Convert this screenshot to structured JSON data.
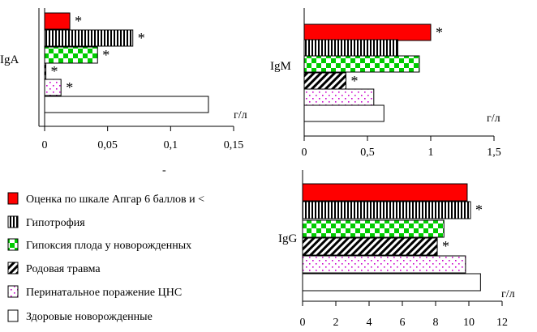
{
  "chart_data": [
    {
      "type": "bar",
      "orientation": "horizontal",
      "row_label": "IgA",
      "unit_label": "г/л",
      "xlim": [
        0,
        0.15
      ],
      "ticks": [
        "0",
        "0,05",
        "0,1",
        "0,15"
      ],
      "bars": [
        {
          "series": 0,
          "value": 0.02,
          "star": true
        },
        {
          "series": 1,
          "value": 0.07,
          "star": true
        },
        {
          "series": 2,
          "value": 0.042,
          "star": true
        },
        {
          "series": 3,
          "value": 0.001,
          "star": true
        },
        {
          "series": 4,
          "value": 0.013,
          "star": true
        },
        {
          "series": 5,
          "value": 0.13,
          "star": false
        }
      ]
    },
    {
      "type": "bar",
      "orientation": "horizontal",
      "row_label": "IgM",
      "unit_label": "г/л",
      "xlim": [
        0,
        1.5
      ],
      "ticks": [
        "0",
        "0,5",
        "1",
        "1,5"
      ],
      "bars": [
        {
          "series": 0,
          "value": 1.0,
          "star": true
        },
        {
          "series": 1,
          "value": 0.74,
          "star": false
        },
        {
          "series": 2,
          "value": 0.91,
          "star": false
        },
        {
          "series": 3,
          "value": 0.33,
          "star": true
        },
        {
          "series": 4,
          "value": 0.55,
          "star": false
        },
        {
          "series": 5,
          "value": 0.63,
          "star": false
        }
      ]
    },
    {
      "type": "bar",
      "orientation": "horizontal",
      "row_label": "IgG",
      "unit_label": "г/л",
      "xlim": [
        0,
        12
      ],
      "ticks": [
        "0",
        "2",
        "4",
        "6",
        "8",
        "10",
        "12"
      ],
      "bars": [
        {
          "series": 0,
          "value": 9.9,
          "star": false
        },
        {
          "series": 1,
          "value": 10.1,
          "star": true
        },
        {
          "series": 2,
          "value": 8.5,
          "star": false
        },
        {
          "series": 3,
          "value": 8.1,
          "star": true
        },
        {
          "series": 4,
          "value": 9.8,
          "star": false
        },
        {
          "series": 5,
          "value": 10.7,
          "star": false
        }
      ]
    }
  ],
  "legend": [
    {
      "label": "Оценка по шкале Апгар 6 баллов и <",
      "pattern": "solid-red"
    },
    {
      "label": "Гипотрофия",
      "pattern": "vertical-stripes"
    },
    {
      "label": "Гипоксия плода у новорожденных",
      "pattern": "green-checker"
    },
    {
      "label": "Родовая травма",
      "pattern": "diagonal-hatch"
    },
    {
      "label": "Перинатальное поражение ЦНС",
      "pattern": "pink-dots"
    },
    {
      "label": "Здоровые новорожденные",
      "pattern": "white"
    }
  ],
  "star_symbol": "*",
  "stray_mark": "-",
  "colors": {
    "red": "#ff0000",
    "green": "#00cc00",
    "pink": "#cc00cc",
    "black": "#000000",
    "white": "#ffffff"
  }
}
